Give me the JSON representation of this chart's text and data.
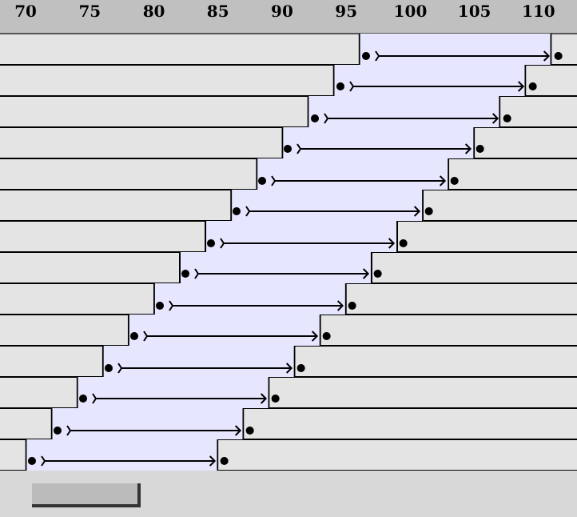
{
  "chart_data": {
    "type": "bar",
    "orientation": "horizontal",
    "categories": [
      null,
      null,
      null,
      null,
      null,
      null,
      null,
      null,
      null,
      null,
      null,
      null,
      null,
      null
    ],
    "base": [
      96,
      94,
      92,
      90,
      88,
      86,
      84,
      82,
      80,
      78,
      76,
      74,
      72,
      70
    ],
    "values": [
      15,
      15,
      15,
      15,
      15,
      15,
      15,
      15,
      15,
      15,
      15,
      15,
      15,
      15
    ],
    "color": "#e6e6ff",
    "xlim": [
      68,
      113
    ],
    "xticks": [
      70,
      75,
      80,
      85,
      90,
      95,
      100,
      105,
      110
    ],
    "grid": "y"
  }
}
